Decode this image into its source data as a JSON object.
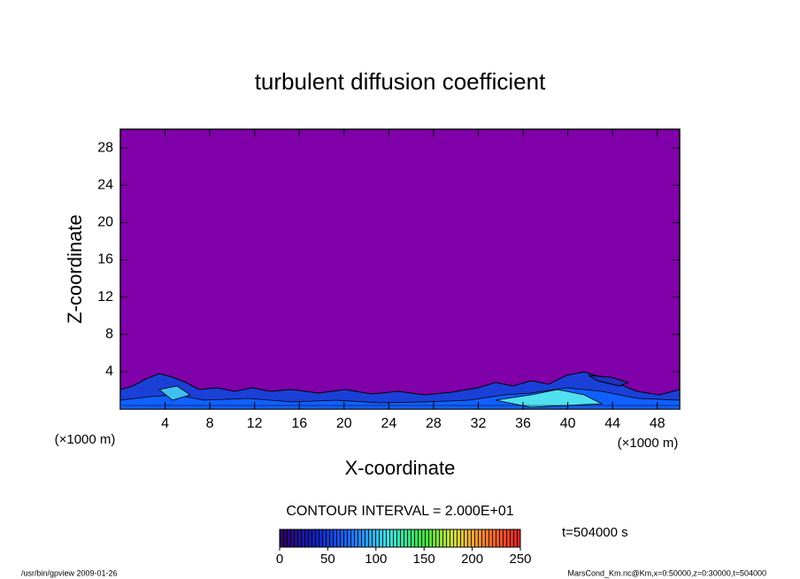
{
  "chart_data": {
    "type": "contour",
    "title": "turbulent diffusion coefficient",
    "x_label": "X-coordinate",
    "y_label": "Z-coordinate",
    "x_unit": "(×1000 m)",
    "y_unit": "(×1000 m)",
    "xlim": [
      0,
      50
    ],
    "xticks": [
      4,
      8,
      12,
      16,
      20,
      24,
      28,
      32,
      36,
      40,
      44,
      48
    ],
    "ylim": [
      0,
      30
    ],
    "yticks": [
      4,
      8,
      12,
      16,
      20,
      24,
      28
    ],
    "background_color": "#8000aa",
    "contour_interval": "CONTOUR INTERVAL = 2.000E+01",
    "time_label": "t=504000 s",
    "clim": [
      0,
      250
    ],
    "cticks": [
      0,
      50,
      100,
      150,
      200,
      250
    ],
    "footer_left": "/usr/bin/gpview  2009-01-26",
    "footer_right": "MarsCond_Km.nc@Km,x=0:50000,z=0:30000,t=504000"
  }
}
